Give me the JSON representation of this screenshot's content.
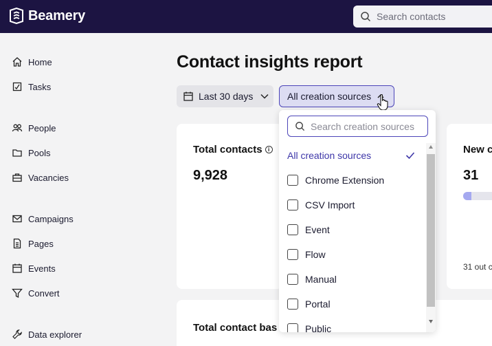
{
  "app": {
    "brand": "Beamery",
    "search_placeholder": "Search contacts"
  },
  "sidebar": {
    "items": [
      {
        "label": "Home",
        "icon": "home-icon"
      },
      {
        "label": "Tasks",
        "icon": "tasks-icon"
      },
      {
        "label": "People",
        "icon": "people-icon"
      },
      {
        "label": "Pools",
        "icon": "folder-icon"
      },
      {
        "label": "Vacancies",
        "icon": "briefcase-icon"
      },
      {
        "label": "Campaigns",
        "icon": "mail-icon"
      },
      {
        "label": "Pages",
        "icon": "page-icon"
      },
      {
        "label": "Events",
        "icon": "calendar-icon"
      },
      {
        "label": "Convert",
        "icon": "filter-icon"
      },
      {
        "label": "Data explorer",
        "icon": "wrench-icon"
      }
    ]
  },
  "main": {
    "title": "Contact insights report",
    "date_filter": "Last 30 days",
    "source_filter": "All creation sources"
  },
  "cards": {
    "total_contacts": {
      "title": "Total contacts",
      "value": "9,928"
    },
    "new_contacts": {
      "title": "New c",
      "value": "31",
      "footnote": "31 out c",
      "progress": 0.2
    },
    "total_base": {
      "title": "Total contact bas"
    }
  },
  "dropdown": {
    "search_placeholder": "Search creation sources",
    "selected": "All creation sources",
    "options": [
      "Chrome Extension",
      "CSV Import",
      "Event",
      "Flow",
      "Manual",
      "Portal",
      "Public"
    ]
  },
  "colors": {
    "topbar": "#1c1442",
    "accent": "#4b44b8",
    "progress_fill": "#a5a9f0"
  }
}
